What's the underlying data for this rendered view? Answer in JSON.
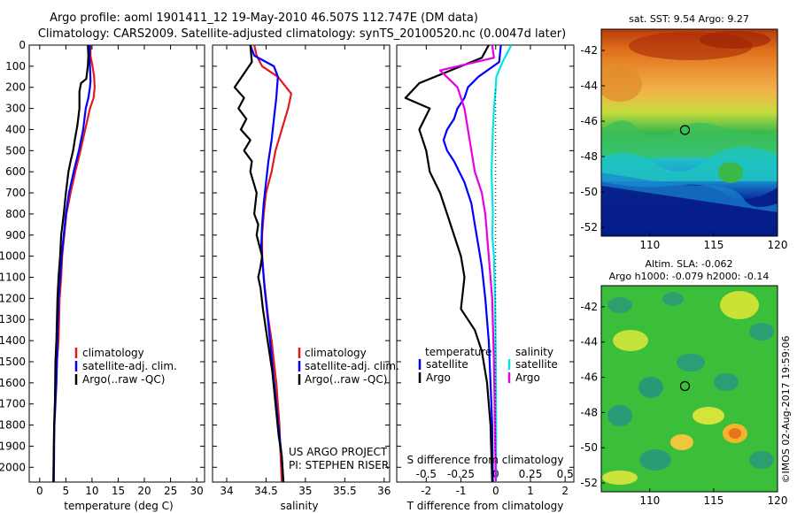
{
  "header": {
    "line1": "Argo profile: aoml 1901411_12 19-May-2010 46.507S 112.747E (DM data)",
    "line2": "Climatology: CARS2009. Satellite-adjusted climatology: synTS_20100520.nc (0.0047d later)"
  },
  "side_stamp": "©IMOS 02-Aug-2017 19:59:06",
  "colors": {
    "climatology": "#e41a1c",
    "satellite": "#0000ff",
    "argo": "#000000",
    "sat_salinity": "#00e5e5",
    "argo_salinity": "#e600e6"
  },
  "chart_data": [
    {
      "type": "line",
      "id": "temperature",
      "xlabel": "temperature (deg C)",
      "xlim": [
        -2,
        31.5
      ],
      "ylim": [
        2070,
        0
      ],
      "y_reversed": true,
      "xticks": [
        0,
        5,
        10,
        15,
        20,
        25,
        30
      ],
      "yticks": [
        0,
        100,
        200,
        300,
        400,
        500,
        600,
        700,
        800,
        900,
        1000,
        1100,
        1200,
        1300,
        1400,
        1500,
        1600,
        1700,
        1800,
        1900,
        2000
      ],
      "legend": {
        "placement": "lower-left",
        "entries": [
          "climatology",
          "satellite-adj. clim.",
          "Argo(..raw -QC)"
        ]
      },
      "series": [
        {
          "name": "climatology",
          "color": "#e41a1c",
          "x": [
            9.7,
            9.7,
            10.1,
            10.4,
            10.5,
            10.3,
            9.6,
            8.7,
            7.8,
            6.8,
            5.9,
            5.1,
            4.7,
            4.3,
            4.1,
            3.8,
            3.6,
            3.3,
            3.1,
            2.9,
            2.8,
            2.7,
            2.65
          ],
          "y": [
            0,
            50,
            100,
            150,
            200,
            250,
            300,
            400,
            500,
            600,
            700,
            800,
            900,
            1000,
            1100,
            1200,
            1400,
            1500,
            1600,
            1700,
            1800,
            1900,
            2070
          ]
        },
        {
          "name": "satellite-adj. clim.",
          "color": "#0000ff",
          "x": [
            9.6,
            9.5,
            9.6,
            9.7,
            9.6,
            9.3,
            8.8,
            8.3,
            7.5,
            6.5,
            5.6,
            5.0,
            4.6,
            4.2,
            3.9,
            3.6,
            3.4,
            3.2,
            3.0,
            2.8,
            2.75,
            2.7
          ],
          "y": [
            0,
            50,
            100,
            170,
            200,
            250,
            300,
            400,
            500,
            600,
            700,
            800,
            900,
            1000,
            1100,
            1200,
            1400,
            1600,
            1700,
            1800,
            1900,
            2070
          ]
        },
        {
          "name": "Argo(..raw -QC)",
          "color": "#000000",
          "x": [
            9.2,
            9.3,
            9.2,
            8.9,
            7.9,
            7.6,
            7.6,
            7.2,
            6.7,
            6.4,
            5.9,
            5.5,
            5.0,
            4.6,
            4.1,
            3.9,
            3.6,
            3.4,
            3.2,
            3.0,
            2.9,
            2.75,
            2.7,
            2.6
          ],
          "y": [
            0,
            50,
            100,
            160,
            180,
            220,
            300,
            380,
            450,
            500,
            550,
            600,
            700,
            800,
            900,
            1000,
            1100,
            1200,
            1400,
            1500,
            1700,
            1800,
            1900,
            2070
          ]
        }
      ]
    },
    {
      "type": "line",
      "id": "salinity",
      "xlabel": "salinity",
      "xlim": [
        33.82,
        36.07
      ],
      "ylim": [
        2070,
        0
      ],
      "y_reversed": true,
      "xticks": [
        34,
        34.5,
        35,
        35.5,
        36
      ],
      "legend": {
        "placement": "lower-left",
        "entries": [
          "climatology",
          "satellite-adj. clim.",
          "Argo(..raw -QC)"
        ]
      },
      "annotations": [
        "US ARGO PROJECT",
        "PI: STEPHEN RISER"
      ],
      "series": [
        {
          "name": "climatology",
          "color": "#e41a1c",
          "x": [
            34.35,
            34.38,
            34.45,
            34.65,
            34.82,
            34.78,
            34.7,
            34.62,
            34.57,
            34.5,
            34.47,
            34.45,
            34.45,
            34.47,
            34.5,
            34.53,
            34.57,
            34.6,
            34.63,
            34.65,
            34.67,
            34.68,
            34.7
          ],
          "y": [
            0,
            50,
            100,
            150,
            230,
            300,
            400,
            500,
            600,
            700,
            800,
            900,
            1000,
            1100,
            1200,
            1300,
            1400,
            1500,
            1600,
            1700,
            1800,
            1900,
            2070
          ]
        },
        {
          "name": "satellite-adj. clim.",
          "color": "#0000ff",
          "x": [
            34.3,
            34.35,
            34.6,
            34.65,
            34.63,
            34.6,
            34.57,
            34.53,
            34.5,
            34.47,
            34.45,
            34.44,
            34.46,
            34.48,
            34.51,
            34.55,
            34.59,
            34.63,
            34.67,
            34.7,
            34.72
          ],
          "y": [
            0,
            50,
            100,
            150,
            250,
            350,
            450,
            550,
            650,
            750,
            850,
            950,
            1050,
            1150,
            1250,
            1400,
            1550,
            1700,
            1850,
            1950,
            2070
          ]
        },
        {
          "name": "Argo(..raw -QC)",
          "color": "#000000",
          "x": [
            34.3,
            34.32,
            34.1,
            34.22,
            34.15,
            34.25,
            34.18,
            34.3,
            34.22,
            34.32,
            34.3,
            34.38,
            34.35,
            34.4,
            34.38,
            34.45,
            34.43,
            34.4,
            34.43,
            34.46,
            34.5,
            34.54,
            34.58,
            34.62,
            34.66,
            34.7,
            34.72
          ],
          "y": [
            0,
            80,
            200,
            250,
            300,
            350,
            400,
            450,
            500,
            550,
            600,
            700,
            800,
            850,
            900,
            1000,
            1050,
            1100,
            1150,
            1250,
            1350,
            1450,
            1550,
            1700,
            1850,
            1950,
            2070
          ]
        }
      ]
    },
    {
      "type": "line",
      "id": "differences",
      "xlabel": "T difference from climatology",
      "x2label": "S difference from climatology",
      "xlim": [
        -2.85,
        2.25
      ],
      "ylim": [
        2070,
        0
      ],
      "y_reversed": true,
      "xticks": [
        -2,
        -1,
        0,
        1,
        2
      ],
      "xticks_salinity": [
        -0.5,
        -0.25,
        0,
        0.25,
        0.5
      ],
      "xticks_salinity_labels": [
        "-0.5",
        "-0.25",
        "0",
        "0.25",
        "0.5"
      ],
      "legend": {
        "placement": "lower-center",
        "temperature_label": "temperature",
        "salinity_label": "salinity",
        "entries": [
          "satellite",
          "Argo",
          "satellite",
          "Argo"
        ]
      },
      "series": [
        {
          "name": "satellite",
          "color": "#0000ff",
          "x": [
            0.15,
            0.1,
            -0.5,
            -0.8,
            -0.9,
            -1.1,
            -1.2,
            -1.4,
            -1.5,
            -1.4,
            -1.2,
            -0.9,
            -0.7,
            -0.6,
            -0.5,
            -0.4,
            -0.3,
            -0.2,
            -0.15,
            -0.1,
            -0.08
          ],
          "y": [
            0,
            80,
            150,
            200,
            250,
            300,
            350,
            400,
            450,
            500,
            550,
            650,
            750,
            850,
            950,
            1050,
            1200,
            1400,
            1600,
            1800,
            2070
          ]
        },
        {
          "name": "Argo",
          "color": "#000000",
          "x": [
            -0.2,
            -0.4,
            -1.0,
            -2.2,
            -2.6,
            -1.9,
            -2.2,
            -2.0,
            -1.9,
            -1.6,
            -1.4,
            -1.2,
            -1.0,
            -0.9,
            -1.0,
            -0.6,
            -0.4,
            -0.25,
            -0.15,
            -0.1
          ],
          "y": [
            0,
            60,
            100,
            180,
            250,
            300,
            400,
            500,
            600,
            700,
            800,
            900,
            1000,
            1100,
            1250,
            1350,
            1450,
            1600,
            1800,
            2070
          ]
        },
        {
          "name": "satellite",
          "color": "#00e5e5",
          "x": [
            0.45,
            0.2,
            0.02,
            0.0,
            -0.05,
            -0.08,
            -0.1,
            -0.12,
            -0.1,
            -0.08,
            -0.1,
            -0.05,
            -0.02,
            0.0,
            0.01,
            0.01
          ],
          "y": [
            0,
            80,
            150,
            200,
            300,
            400,
            500,
            600,
            700,
            800,
            900,
            1000,
            1200,
            1500,
            1800,
            2070
          ]
        },
        {
          "name": "Argo",
          "color": "#e600e6",
          "x": [
            -0.1,
            -0.05,
            -1.6,
            -1.1,
            -0.9,
            -0.8,
            -0.7,
            -0.6,
            -0.4,
            -0.3,
            -0.25,
            -0.2,
            -0.1,
            -0.05,
            0.0
          ],
          "y": [
            0,
            60,
            120,
            200,
            300,
            400,
            500,
            600,
            700,
            800,
            900,
            1000,
            1200,
            1500,
            2070
          ]
        }
      ]
    },
    {
      "type": "heatmap",
      "id": "sst-map",
      "title": "sat. SST: 9.54  Argo: 9.27",
      "xlim": [
        106.2,
        120
      ],
      "ylim": [
        -52.5,
        -40.8
      ],
      "xticks": [
        110,
        115,
        120
      ],
      "yticks": [
        -42,
        -44,
        -46,
        -48,
        -50,
        -52
      ],
      "marker": {
        "lon": 112.75,
        "lat": -46.5
      }
    },
    {
      "type": "heatmap",
      "id": "sla-map",
      "title_line1": "Altim. SLA: -0.062",
      "title_line2": "Argo h1000: -0.079 h2000: -0.14",
      "xlim": [
        106.2,
        120
      ],
      "ylim": [
        -52.5,
        -40.8
      ],
      "xticks": [
        110,
        115,
        120
      ],
      "yticks": [
        -42,
        -44,
        -46,
        -48,
        -50,
        -52
      ],
      "marker": {
        "lon": 112.75,
        "lat": -46.5
      }
    }
  ]
}
